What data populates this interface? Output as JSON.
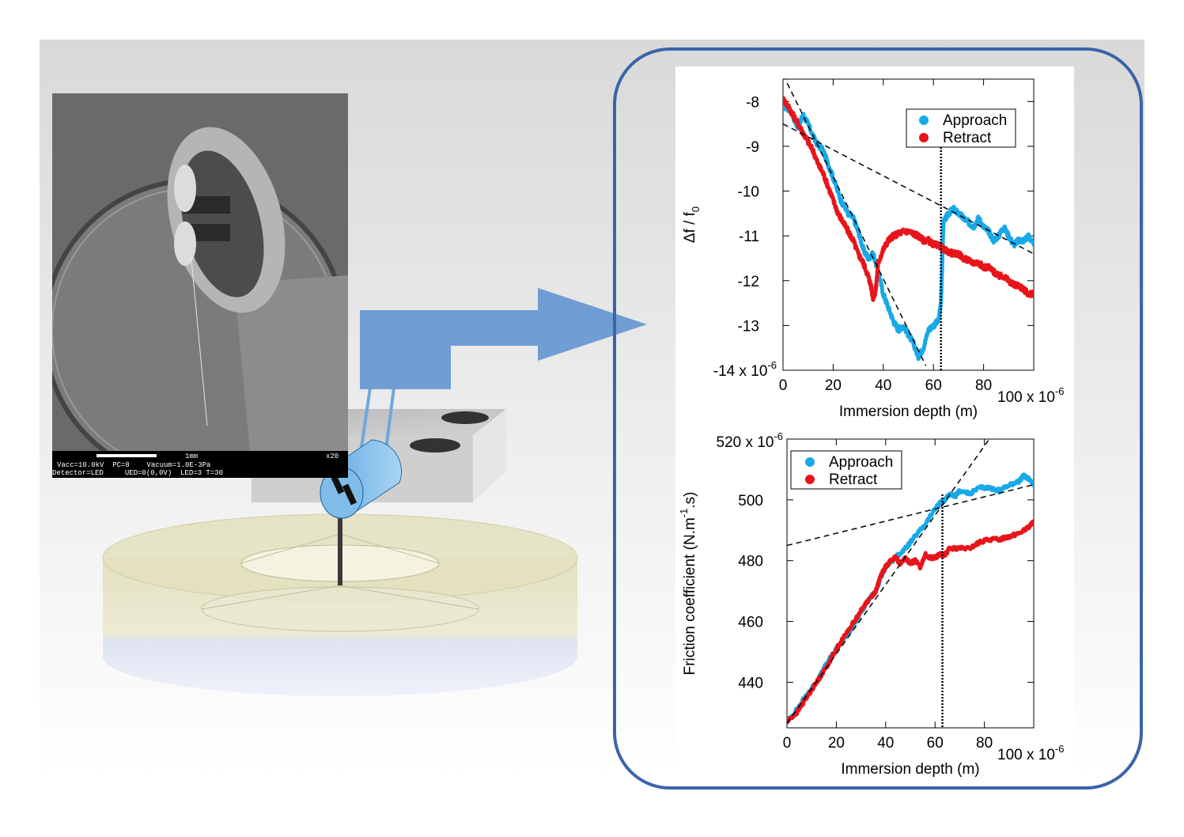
{
  "colors": {
    "approach": "#17a9e8",
    "retract": "#e8141b",
    "frame": "#3b64a8",
    "arrow": "#6f9dd4"
  },
  "sem_caption": {
    "scale_label": "1mm",
    "magnification": "x20",
    "line1": "Vacc=10.0kV  PC=8    Vacuum=1.0E-3Pa",
    "line2": "Detector=LED     UED=0(0,0V)  LED=3 T=30"
  },
  "chart_data": [
    {
      "type": "scatter",
      "xlabel": "Immersion depth (m)",
      "ylabel": "Δf / f",
      "ylabel_sub": "0",
      "x_multiplier_label": "x 10",
      "x_multiplier_exp": "-6",
      "y_multiplier_label": "x 10",
      "y_multiplier_exp": "-6",
      "xlim": [
        0,
        100
      ],
      "ylim": [
        -14,
        -7.5
      ],
      "x_ticks": [
        0,
        20,
        40,
        60,
        80,
        100
      ],
      "x_tick_labels": [
        "0",
        "20",
        "40",
        "60",
        "80",
        "100"
      ],
      "y_ticks": [
        -14,
        -13,
        -12,
        -11,
        -10,
        -9,
        -8
      ],
      "y_tick_labels": [
        "-14",
        "-13",
        "-12",
        "-11",
        "-10",
        "-9",
        "-8"
      ],
      "legend": [
        "Approach",
        "Retract"
      ],
      "legend_position": "top-right",
      "vertical_marker_x": 63,
      "fit_lines": [
        {
          "x": [
            0,
            57
          ],
          "y": [
            -7.4,
            -13.9
          ]
        },
        {
          "x": [
            0,
            100
          ],
          "y": [
            -8.5,
            -11.4
          ]
        }
      ],
      "series": [
        {
          "name": "Approach",
          "x": [
            0,
            3,
            6,
            8,
            10,
            13,
            16,
            18,
            20,
            23,
            26,
            28,
            30,
            32,
            34,
            36,
            38,
            40,
            42,
            44,
            46,
            48,
            50,
            52,
            54,
            56,
            58,
            60,
            62,
            63,
            63.5,
            64,
            66,
            68,
            70,
            72,
            74,
            76,
            78,
            80,
            82,
            84,
            86,
            88,
            90,
            92,
            94,
            96,
            98,
            100
          ],
          "y": [
            -8.1,
            -8.2,
            -8.6,
            -8.3,
            -8.5,
            -8.9,
            -9.1,
            -9.4,
            -9.7,
            -10.2,
            -10.5,
            -10.6,
            -10.9,
            -11.3,
            -11.5,
            -11.4,
            -11.8,
            -12.3,
            -12.6,
            -12.9,
            -13.1,
            -13.0,
            -13.2,
            -13.4,
            -13.7,
            -13.5,
            -13.1,
            -13.0,
            -12.9,
            -12.5,
            -11.6,
            -10.7,
            -10.5,
            -10.4,
            -10.5,
            -10.6,
            -10.7,
            -10.8,
            -10.6,
            -10.8,
            -10.9,
            -11.1,
            -11.0,
            -10.8,
            -11.0,
            -11.2,
            -11.1,
            -11.1,
            -11.0,
            -11.2
          ]
        },
        {
          "name": "Retract",
          "x": [
            0,
            2,
            4,
            6,
            8,
            10,
            12,
            14,
            16,
            18,
            20,
            22,
            24,
            26,
            28,
            30,
            32,
            34,
            35,
            36,
            37,
            38,
            40,
            42,
            44,
            46,
            48,
            50,
            52,
            54,
            56,
            58,
            60,
            62,
            64,
            66,
            68,
            70,
            72,
            74,
            76,
            78,
            80,
            82,
            84,
            86,
            88,
            90,
            92,
            94,
            96,
            98,
            100
          ],
          "y": [
            -7.95,
            -8.1,
            -8.3,
            -8.5,
            -8.7,
            -8.9,
            -9.1,
            -9.4,
            -9.6,
            -9.9,
            -10.2,
            -10.5,
            -10.7,
            -10.9,
            -11.1,
            -11.4,
            -11.6,
            -11.9,
            -12.1,
            -12.4,
            -12.2,
            -11.6,
            -11.3,
            -11.1,
            -11.0,
            -10.95,
            -10.9,
            -10.9,
            -10.95,
            -11.0,
            -11.1,
            -11.1,
            -11.2,
            -11.2,
            -11.3,
            -11.35,
            -11.4,
            -11.4,
            -11.5,
            -11.55,
            -11.6,
            -11.6,
            -11.7,
            -11.7,
            -11.8,
            -11.9,
            -11.9,
            -12.0,
            -12.1,
            -12.1,
            -12.2,
            -12.3,
            -12.3
          ]
        }
      ]
    },
    {
      "type": "scatter",
      "xlabel": "Immersion depth (m)",
      "ylabel": "Friction coefficient (N.m",
      "ylabel_sup": "-1",
      "ylabel_tail": ".s)",
      "x_multiplier_label": "x 10",
      "x_multiplier_exp": "-6",
      "y_top_label": "520 x 10",
      "y_top_exp": "-6",
      "xlim": [
        0,
        100
      ],
      "ylim": [
        425,
        520
      ],
      "x_ticks": [
        0,
        20,
        40,
        60,
        80,
        100
      ],
      "x_tick_labels": [
        "0",
        "20",
        "40",
        "60",
        "80",
        "100"
      ],
      "y_ticks": [
        440,
        460,
        480,
        500,
        520
      ],
      "y_tick_labels": [
        "440",
        "460",
        "480",
        "500",
        ""
      ],
      "legend": [
        "Approach",
        "Retract"
      ],
      "legend_position": "top-left",
      "vertical_marker_x": 63,
      "fit_lines": [
        {
          "x": [
            0,
            82
          ],
          "y": [
            426.5,
            520
          ]
        },
        {
          "x": [
            0,
            100
          ],
          "y": [
            485,
            505
          ]
        }
      ],
      "series": [
        {
          "name": "Approach",
          "x": [
            0,
            4,
            8,
            12,
            16,
            20,
            24,
            28,
            32,
            36,
            40,
            44,
            48,
            52,
            56,
            60,
            62,
            64,
            66,
            68,
            70,
            74,
            78,
            82,
            86,
            90,
            94,
            96,
            98,
            100
          ],
          "y": [
            427,
            431,
            436,
            440,
            446,
            451,
            455,
            460,
            466,
            470,
            478,
            481,
            484,
            488,
            492,
            497,
            499,
            500,
            502,
            501,
            503,
            502,
            504,
            504,
            503,
            505,
            506,
            508,
            507,
            505
          ]
        },
        {
          "name": "Retract",
          "x": [
            0,
            4,
            8,
            12,
            16,
            20,
            24,
            28,
            32,
            36,
            38,
            40,
            42,
            44,
            46,
            48,
            50,
            52,
            54,
            56,
            58,
            60,
            62,
            64,
            66,
            70,
            74,
            78,
            82,
            86,
            90,
            94,
            98,
            100
          ],
          "y": [
            427,
            430,
            435,
            440,
            445,
            451,
            456,
            461,
            466,
            470,
            475,
            478,
            480,
            481,
            479,
            481,
            479,
            480,
            478,
            482,
            481,
            481,
            482,
            482,
            484,
            484,
            484,
            486,
            487,
            487,
            488,
            489,
            491,
            493
          ]
        }
      ]
    }
  ]
}
